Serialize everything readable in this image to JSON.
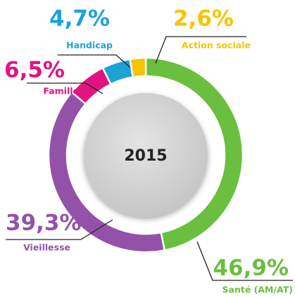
{
  "chart_data": {
    "type": "donut",
    "center_label": "2015",
    "categories": [
      "Santé (AM/AT)",
      "Vieillesse",
      "Famille",
      "Handicap",
      "Action sociale"
    ],
    "values": [
      46.9,
      39.3,
      6.5,
      4.7,
      2.6
    ],
    "value_labels": [
      "46,9%",
      "39,3%",
      "6,5%",
      "4,7%",
      "2,6%"
    ],
    "colors": [
      "#6abf3f",
      "#9352a8",
      "#e2147f",
      "#1ca3d6",
      "#f7c400"
    ]
  }
}
